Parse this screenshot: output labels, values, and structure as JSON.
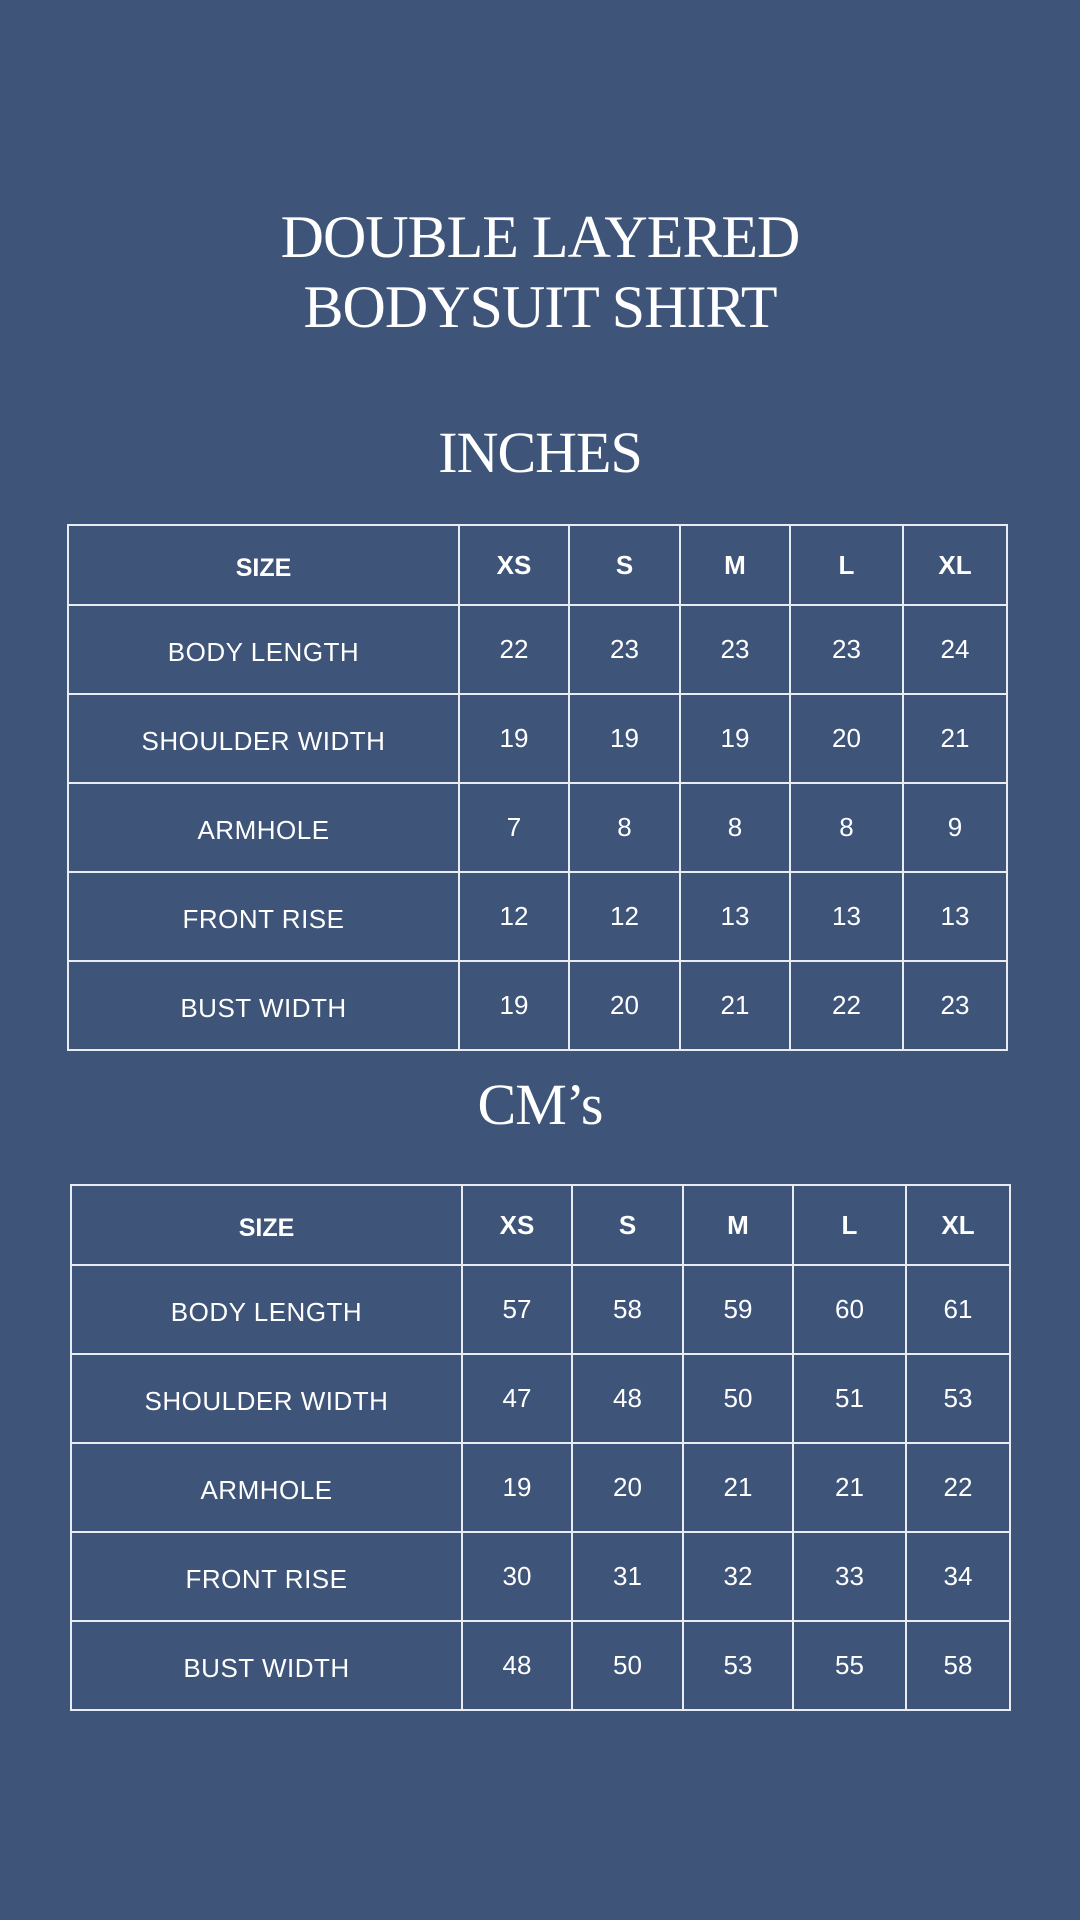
{
  "title": {
    "line1": "DOUBLE LAYERED",
    "line2": "BODYSUIT SHIRT"
  },
  "background_color": "#3e5479",
  "tables": [
    {
      "heading": "INCHES",
      "columns": [
        "SIZE",
        "XS",
        "S",
        "M",
        "L",
        "XL"
      ],
      "rows": [
        {
          "label": "BODY LENGTH",
          "values": [
            "22",
            "23",
            "23",
            "23",
            "24"
          ]
        },
        {
          "label": "SHOULDER WIDTH",
          "values": [
            "19",
            "19",
            "19",
            "20",
            "21"
          ]
        },
        {
          "label": "ARMHOLE",
          "values": [
            "7",
            "8",
            "8",
            "8",
            "9"
          ]
        },
        {
          "label": "FRONT RISE",
          "values": [
            "12",
            "12",
            "13",
            "13",
            "13"
          ]
        },
        {
          "label": "BUST WIDTH",
          "values": [
            "19",
            "20",
            "21",
            "22",
            "23"
          ]
        }
      ]
    },
    {
      "heading": "CM’s",
      "columns": [
        "SIZE",
        "XS",
        "S",
        "M",
        "L",
        "XL"
      ],
      "rows": [
        {
          "label": "BODY LENGTH",
          "values": [
            "57",
            "58",
            "59",
            "60",
            "61"
          ]
        },
        {
          "label": "SHOULDER WIDTH",
          "values": [
            "47",
            "48",
            "50",
            "51",
            "53"
          ]
        },
        {
          "label": "ARMHOLE",
          "values": [
            "19",
            "20",
            "21",
            "21",
            "22"
          ]
        },
        {
          "label": "FRONT RISE",
          "values": [
            "30",
            "31",
            "32",
            "33",
            "34"
          ]
        },
        {
          "label": "BUST WIDTH",
          "values": [
            "48",
            "50",
            "53",
            "55",
            "58"
          ]
        }
      ]
    }
  ]
}
